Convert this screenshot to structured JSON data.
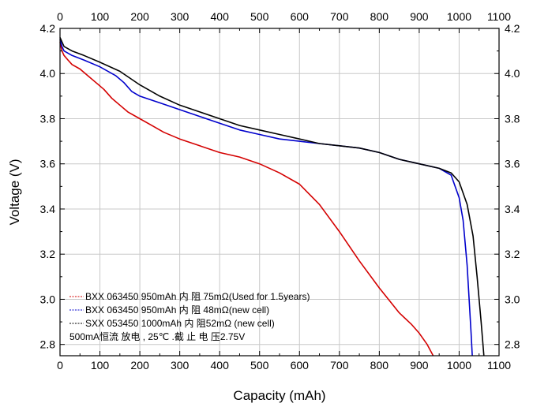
{
  "chart_data": {
    "type": "line",
    "xlabel": "Capacity (mAh)",
    "ylabel": "Voltage (V)",
    "xlim": [
      0,
      1100
    ],
    "ylim": [
      2.75,
      4.2
    ],
    "x_ticks": [
      0,
      100,
      200,
      300,
      400,
      500,
      600,
      700,
      800,
      900,
      1000,
      1100
    ],
    "y_ticks": [
      "2.8",
      "3.0",
      "3.2",
      "3.4",
      "3.6",
      "3.8",
      "4.0",
      "4.2"
    ],
    "grid": true,
    "legend_position": "bottom-left",
    "legend_note": "500mA恒流 放电 , 25℃ .截  止 电 压2.75V",
    "series": [
      {
        "name": "BXX 063450 950mAh  内  阻 75mΩ(Used for 1.5years)",
        "color": "#d40000",
        "x": [
          0,
          5,
          10,
          20,
          30,
          50,
          70,
          90,
          110,
          130,
          150,
          170,
          200,
          230,
          260,
          300,
          350,
          400,
          450,
          500,
          550,
          600,
          650,
          700,
          750,
          800,
          850,
          880,
          900,
          920,
          935
        ],
        "y": [
          4.14,
          4.1,
          4.08,
          4.06,
          4.04,
          4.02,
          3.99,
          3.96,
          3.93,
          3.89,
          3.86,
          3.83,
          3.8,
          3.77,
          3.74,
          3.71,
          3.68,
          3.65,
          3.63,
          3.6,
          3.56,
          3.51,
          3.42,
          3.3,
          3.17,
          3.05,
          2.94,
          2.89,
          2.85,
          2.8,
          2.75
        ]
      },
      {
        "name": "BXX 063450 950mAh  内  阻 48mΩ(new cell)",
        "color": "#0000cc",
        "x": [
          0,
          5,
          10,
          30,
          60,
          100,
          140,
          160,
          180,
          200,
          250,
          300,
          350,
          400,
          450,
          500,
          550,
          600,
          650,
          700,
          750,
          800,
          850,
          900,
          950,
          980,
          1000,
          1010,
          1020,
          1025,
          1030,
          1033
        ],
        "y": [
          4.15,
          4.12,
          4.1,
          4.08,
          4.06,
          4.03,
          3.99,
          3.96,
          3.92,
          3.9,
          3.87,
          3.84,
          3.81,
          3.78,
          3.75,
          3.73,
          3.71,
          3.7,
          3.69,
          3.68,
          3.67,
          3.65,
          3.62,
          3.6,
          3.58,
          3.55,
          3.45,
          3.35,
          3.15,
          3.0,
          2.85,
          2.75
        ]
      },
      {
        "name": "SXX 053450 1000mAh  内 阻52mΩ (new cell)",
        "color": "#000000",
        "x": [
          0,
          5,
          10,
          30,
          60,
          100,
          150,
          200,
          250,
          300,
          350,
          400,
          450,
          500,
          550,
          600,
          650,
          700,
          750,
          800,
          850,
          900,
          950,
          980,
          1000,
          1020,
          1035,
          1045,
          1055,
          1062
        ],
        "y": [
          4.16,
          4.14,
          4.12,
          4.1,
          4.08,
          4.05,
          4.01,
          3.95,
          3.9,
          3.86,
          3.83,
          3.8,
          3.77,
          3.75,
          3.73,
          3.71,
          3.69,
          3.68,
          3.67,
          3.65,
          3.62,
          3.6,
          3.58,
          3.56,
          3.52,
          3.42,
          3.28,
          3.1,
          2.9,
          2.75
        ]
      }
    ]
  }
}
